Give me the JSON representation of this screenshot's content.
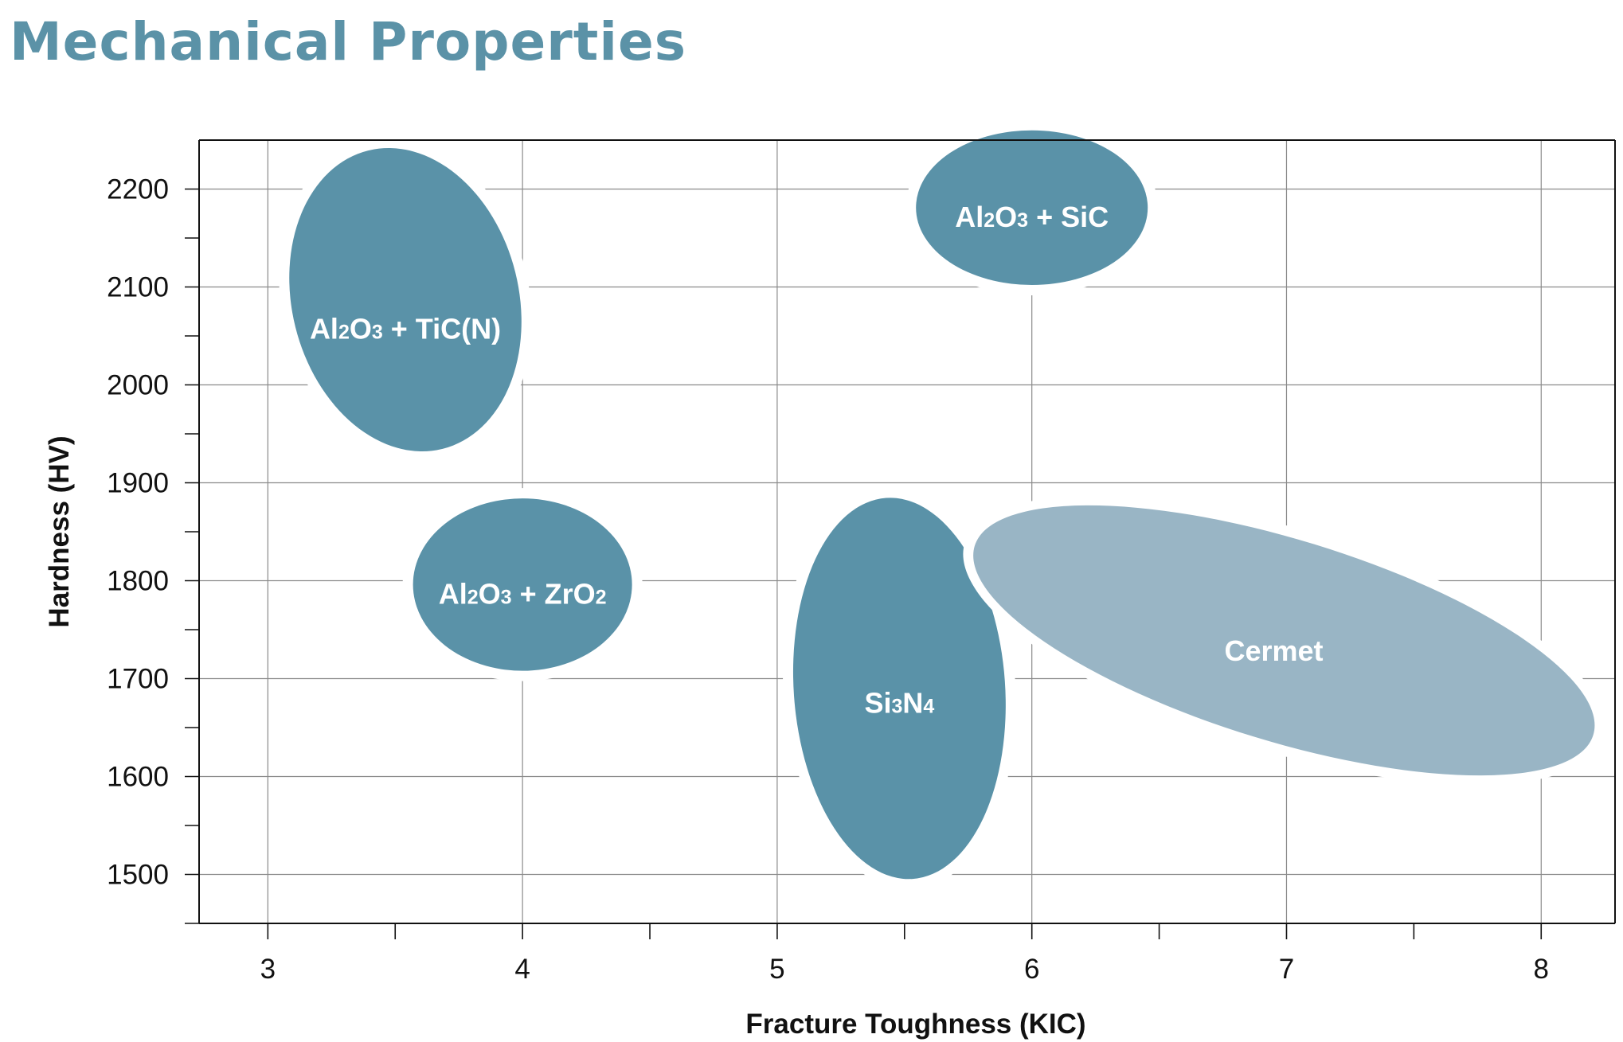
{
  "page": {
    "title": "Mechanical Properties"
  },
  "chart_data": {
    "type": "scatter",
    "title": "Mechanical Properties",
    "xlabel": "Fracture Toughness (KIC)",
    "ylabel": "Hardness (HV)",
    "xlim": [
      2.73,
      8.29
    ],
    "ylim": [
      1450,
      2250
    ],
    "x_ticks": [
      3,
      4,
      5,
      6,
      7,
      8
    ],
    "x_minor_ticks": [
      3.5,
      4.5,
      5.5,
      6.5,
      7.5
    ],
    "y_ticks": [
      1500,
      1600,
      1700,
      1800,
      1900,
      2000,
      2100,
      2200
    ],
    "y_minor_ticks": [
      1550,
      1650,
      1750,
      1850,
      1950,
      2050,
      2150
    ],
    "grid": true,
    "legend": "none",
    "series": [
      {
        "name": "Al2O3 + TiC(N)",
        "label": {
          "base": "Al",
          "sub1": "2",
          "mid": "O",
          "sub2": "3",
          "tail": " + TiC(N)"
        },
        "center": [
          3.54,
          2087
        ],
        "semi_x": 0.445,
        "semi_y": 157,
        "tilt_deg": -14,
        "color": "#5a92a8",
        "label_at": [
          3.54,
          2057
        ]
      },
      {
        "name": "Al2O3 + SiC",
        "label": {
          "base": "Al",
          "sub1": "2",
          "mid": "O",
          "sub2": "3",
          "tail": " + SiC"
        },
        "center": [
          6.0,
          2181
        ],
        "semi_x": 0.455,
        "semi_y": 79,
        "tilt_deg": 0,
        "color": "#5a92a8",
        "label_at": [
          6.0,
          2171
        ]
      },
      {
        "name": "Al2O3 + ZrO2",
        "label": {
          "base": "Al",
          "sub1": "2",
          "mid": "O",
          "sub2": "3",
          "tail": " + ZrO",
          "sub3": "2"
        },
        "center": [
          4.0,
          1796
        ],
        "semi_x": 0.43,
        "semi_y": 88,
        "tilt_deg": 0,
        "color": "#5a92a8",
        "label_at": [
          4.0,
          1786
        ]
      },
      {
        "name": "Si3N4",
        "label": {
          "base": "Si",
          "sub1": "3",
          "mid": "N",
          "sub2": "4",
          "tail": ""
        },
        "center": [
          5.48,
          1690
        ],
        "semi_x": 0.415,
        "semi_y": 195,
        "tilt_deg": -4,
        "color": "#5a92a8",
        "label_at": [
          5.48,
          1675
        ]
      },
      {
        "name": "Cermet",
        "label": {
          "base": "Cermet",
          "sub1": "",
          "mid": "",
          "sub2": "",
          "tail": ""
        },
        "center": [
          6.99,
          1739
        ],
        "semi_x": 1.27,
        "semi_y": 103,
        "tilt_deg": 17,
        "color": "#99b5c5",
        "label_at": [
          6.95,
          1728
        ]
      }
    ]
  }
}
